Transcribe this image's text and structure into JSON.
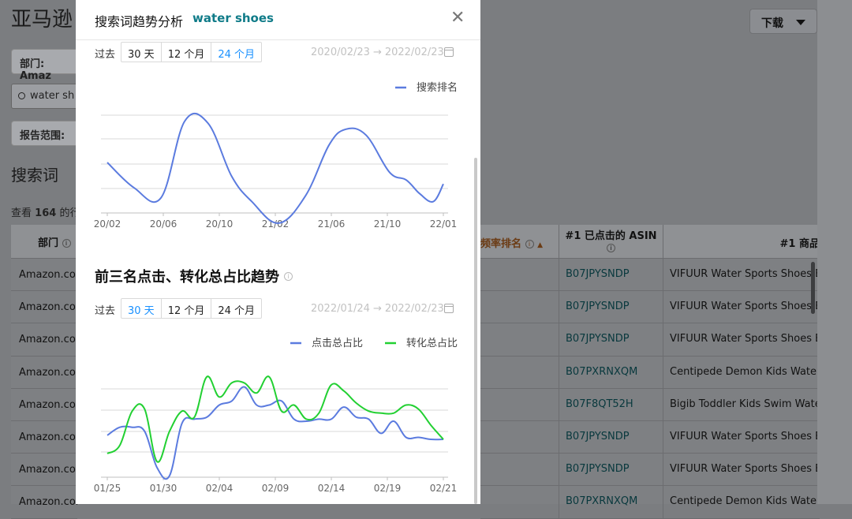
{
  "background": {
    "page_title": "亚马逊",
    "dept_filter_label": "部门: Amaz",
    "search_value": "water sh",
    "report_range_label": "报告范围:",
    "section_title": "搜索词",
    "results_count_prefix": "查看",
    "results_count_number": "164",
    "results_count_suffix": "的行",
    "download_label": "下载",
    "table": {
      "col_dept": "部门",
      "col_rank": "频率排名",
      "col_asin": "#1 已点击的 ASIN",
      "col_product": "#1 商品",
      "rows": [
        {
          "dept": "Amazon.com",
          "asin": "B07JPYSNDP",
          "product": "VIFUUR Water Sports Shoes Barefoot"
        },
        {
          "dept": "Amazon.com",
          "asin": "B07JPYSNDP",
          "product": "VIFUUR Water Sports Shoes Barefoot"
        },
        {
          "dept": "Amazon.com",
          "asin": "B07JPYSNDP",
          "product": "VIFUUR Water Sports Shoes Barefoot"
        },
        {
          "dept": "Amazon.com",
          "asin": "B07PXRNXQM",
          "product": "Centipede Demon Kids Water Shoes"
        },
        {
          "dept": "Amazon.com",
          "asin": "B07F8QT52H",
          "product": "Bigib Toddler Kids Swim Water Shoes"
        },
        {
          "dept": "Amazon.com",
          "asin": "B07JPYSNDP",
          "product": "VIFUUR Water Sports Shoes Barefoot"
        },
        {
          "dept": "Amazon.com",
          "asin": "B07JPYSNDP",
          "product": "VIFUUR Water Sports Shoes Barefoot"
        },
        {
          "dept": "Amazon.com",
          "asin": "B07PXRNXQM",
          "product": "Centipede Demon Kids Water Shoes"
        }
      ]
    }
  },
  "modal": {
    "title": "搜索词趋势分析",
    "keyword": "water shoes",
    "close_icon": "close-icon",
    "chart1_range": {
      "label": "过去",
      "options": [
        "30 天",
        "12 个月",
        "24 个月"
      ],
      "active_index": 2,
      "date_start": "2020/02/23",
      "date_end": "2022/02/23",
      "arrow": "→"
    },
    "chart2_section_title": "前三名点击、转化总占比趋势",
    "chart2_range": {
      "label": "过去",
      "options": [
        "30 天",
        "12 个月",
        "24 个月"
      ],
      "active_index": 0,
      "date_start": "2022/01/24",
      "date_end": "2022/02/23",
      "arrow": "→"
    }
  },
  "chart_data": [
    {
      "type": "line",
      "title": "",
      "x_tick_labels": [
        "20/02",
        "20/06",
        "20/10",
        "21/02",
        "21/06",
        "21/10",
        "22/01"
      ],
      "series": [
        {
          "name": "搜索排名",
          "color": "#5b7bdf",
          "x": [
            0,
            0.08,
            0.16,
            0.23,
            0.3,
            0.37,
            0.43,
            0.51,
            0.59,
            0.66,
            0.71,
            0.77,
            0.84,
            0.89,
            0.93,
            0.97,
            1.0
          ],
          "values": [
            0.25,
            0.12,
            0.07,
            0.46,
            0.45,
            0.18,
            0.05,
            -0.06,
            0.08,
            0.34,
            0.42,
            0.39,
            0.2,
            0.16,
            0.09,
            0.05,
            0.14
          ]
        }
      ],
      "legend": "top-right",
      "grid": true
    },
    {
      "type": "line",
      "title": "前三名点击、转化总占比趋势",
      "x_tick_labels": [
        "01/25",
        "01/30",
        "02/04",
        "02/09",
        "02/14",
        "02/19",
        "02/21"
      ],
      "series": [
        {
          "name": "点击总占比",
          "color": "#5b7bdf",
          "values": [
            0.18,
            0.22,
            0.22,
            0.2,
            0.02,
            -0.02,
            0.24,
            0.26,
            0.27,
            0.33,
            0.35,
            0.42,
            0.33,
            0.33,
            0.35,
            0.26,
            0.25,
            0.26,
            0.26,
            0.32,
            0.27,
            0.26,
            0.19,
            0.25,
            0.17,
            0.17,
            0.16,
            0.16
          ]
        },
        {
          "name": "转化总占比",
          "color": "#22d032",
          "values": [
            0.09,
            0.13,
            0.3,
            0.31,
            0.05,
            0.2,
            0.3,
            0.27,
            0.47,
            0.37,
            0.44,
            0.44,
            0.39,
            0.47,
            0.3,
            0.33,
            0.26,
            0.29,
            0.43,
            0.4,
            0.34,
            0.3,
            0.29,
            0.29,
            0.33,
            0.31,
            0.23,
            0.16
          ]
        }
      ],
      "legend": "top-right",
      "grid": true
    }
  ]
}
